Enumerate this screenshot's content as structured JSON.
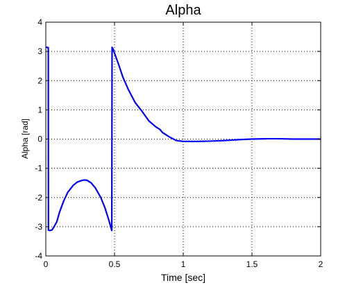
{
  "chart_data": {
    "type": "line",
    "title": "Alpha",
    "xlabel": "Time [sec]",
    "ylabel": "Alpha [rad]",
    "xlim": [
      0,
      2
    ],
    "ylim": [
      -4,
      4
    ],
    "grid": true,
    "x_ticks": [
      "0",
      "0.5",
      "1",
      "1.5",
      "2"
    ],
    "y_ticks": [
      "-4",
      "-3",
      "-2",
      "-1",
      "0",
      "1",
      "2",
      "3",
      "4"
    ],
    "line_color": "#0000ff",
    "series": [
      {
        "points": [
          [
            0.0,
            3.14
          ],
          [
            0.005,
            3.14
          ],
          [
            0.01,
            3.14
          ],
          [
            0.015,
            3.13
          ],
          [
            0.018,
            3.13
          ],
          [
            0.019,
            -3.12
          ],
          [
            0.03,
            -3.13
          ],
          [
            0.045,
            -3.11
          ],
          [
            0.06,
            -3.0
          ],
          [
            0.08,
            -2.83
          ],
          [
            0.1,
            -2.5
          ],
          [
            0.13,
            -2.12
          ],
          [
            0.16,
            -1.82
          ],
          [
            0.2,
            -1.58
          ],
          [
            0.23,
            -1.47
          ],
          [
            0.26,
            -1.42
          ],
          [
            0.28,
            -1.4
          ],
          [
            0.3,
            -1.41
          ],
          [
            0.33,
            -1.5
          ],
          [
            0.36,
            -1.67
          ],
          [
            0.4,
            -2.0
          ],
          [
            0.43,
            -2.35
          ],
          [
            0.455,
            -2.72
          ],
          [
            0.47,
            -2.96
          ],
          [
            0.48,
            -3.13
          ],
          [
            0.482,
            3.14
          ],
          [
            0.49,
            3.08
          ],
          [
            0.5,
            2.94
          ],
          [
            0.53,
            2.55
          ],
          [
            0.56,
            2.13
          ],
          [
            0.6,
            1.7
          ],
          [
            0.65,
            1.25
          ],
          [
            0.7,
            0.95
          ],
          [
            0.75,
            0.62
          ],
          [
            0.8,
            0.42
          ],
          [
            0.83,
            0.33
          ],
          [
            0.85,
            0.22
          ],
          [
            0.9,
            0.07
          ],
          [
            0.95,
            -0.05
          ],
          [
            1.0,
            -0.08
          ],
          [
            1.05,
            -0.08
          ],
          [
            1.1,
            -0.08
          ],
          [
            1.2,
            -0.07
          ],
          [
            1.3,
            -0.05
          ],
          [
            1.4,
            -0.02
          ],
          [
            1.5,
            0.0
          ],
          [
            1.6,
            0.01
          ],
          [
            1.7,
            0.01
          ],
          [
            1.8,
            0.0
          ],
          [
            1.9,
            0.0
          ],
          [
            2.0,
            0.0
          ]
        ]
      }
    ]
  }
}
